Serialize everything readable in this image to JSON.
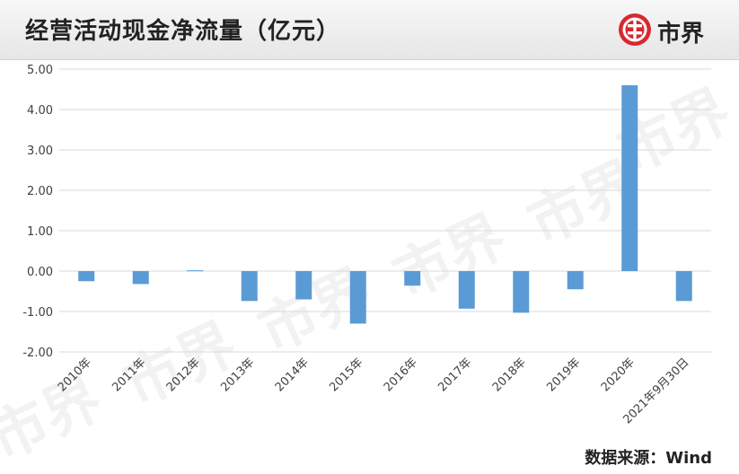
{
  "header": {
    "title": "经营活动现金净流量（亿元）",
    "logo_text": "市界"
  },
  "source": "数据来源：Wind",
  "watermark": "市界",
  "colors": {
    "bar": "#5b9bd5",
    "grid": "#d9d9d9",
    "axis_text": "#404040",
    "brand": "#d7282f"
  },
  "chart_data": {
    "type": "bar",
    "title": "经营活动现金净流量（亿元）",
    "categories": [
      "2010年",
      "2011年",
      "2012年",
      "2013年",
      "2014年",
      "2015年",
      "2016年",
      "2017年",
      "2018年",
      "2019年",
      "2020年",
      "2021年9月30日"
    ],
    "series": [
      {
        "values": [
          -0.25,
          -0.32,
          0.02,
          -0.74,
          -0.7,
          -1.3,
          -0.36,
          -0.93,
          -1.03,
          -0.45,
          4.6,
          -0.74
        ]
      }
    ],
    "ylim": [
      -2.0,
      5.0
    ],
    "yticks": [
      "5.00",
      "4.00",
      "3.00",
      "2.00",
      "1.00",
      "0.00",
      "-1.00",
      "-2.00"
    ],
    "grid": true,
    "legend": "none"
  }
}
